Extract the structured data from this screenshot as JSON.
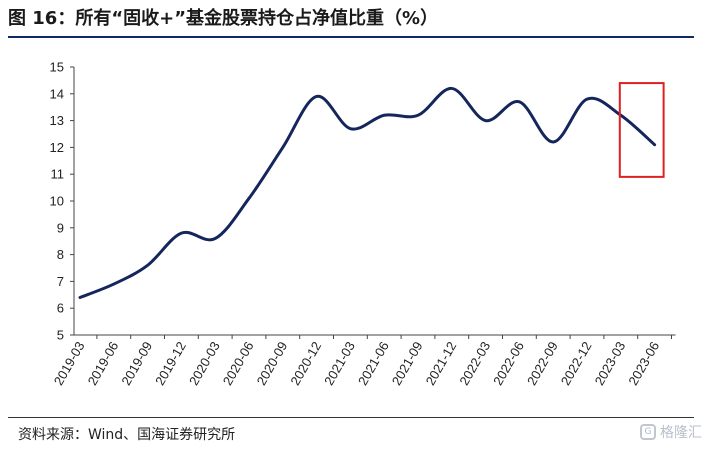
{
  "title": "图 16：所有“固收+”基金股票持仓占净值比重（%）",
  "source": "资料来源：Wind、国海证券研究所",
  "watermark": {
    "text": "格隆汇",
    "logo": "G"
  },
  "colors": {
    "line": "#14265c",
    "highlight": "#e02020",
    "rule": "#0d2a63"
  },
  "chart_data": {
    "type": "line",
    "title": "",
    "xlabel": "",
    "ylabel": "",
    "ylim": [
      5,
      15
    ],
    "yticks": [
      5,
      6,
      7,
      8,
      9,
      10,
      11,
      12,
      13,
      14,
      15
    ],
    "grid": false,
    "legend": "none",
    "categories": [
      "2019-03",
      "2019-06",
      "2019-09",
      "2019-12",
      "2020-03",
      "2020-06",
      "2020-09",
      "2020-12",
      "2021-03",
      "2021-06",
      "2021-09",
      "2021-12",
      "2022-03",
      "2022-06",
      "2022-09",
      "2022-12",
      "2023-03",
      "2023-06"
    ],
    "series": [
      {
        "values": [
          6.4,
          6.9,
          7.6,
          8.8,
          8.6,
          10.1,
          12.0,
          13.9,
          12.7,
          13.2,
          13.2,
          14.2,
          13.0,
          13.7,
          12.2,
          13.8,
          13.2,
          12.1
        ]
      }
    ],
    "highlight": {
      "from": "2023-03",
      "to": "2023-06",
      "ymin": 10.9,
      "ymax": 14.4
    }
  }
}
